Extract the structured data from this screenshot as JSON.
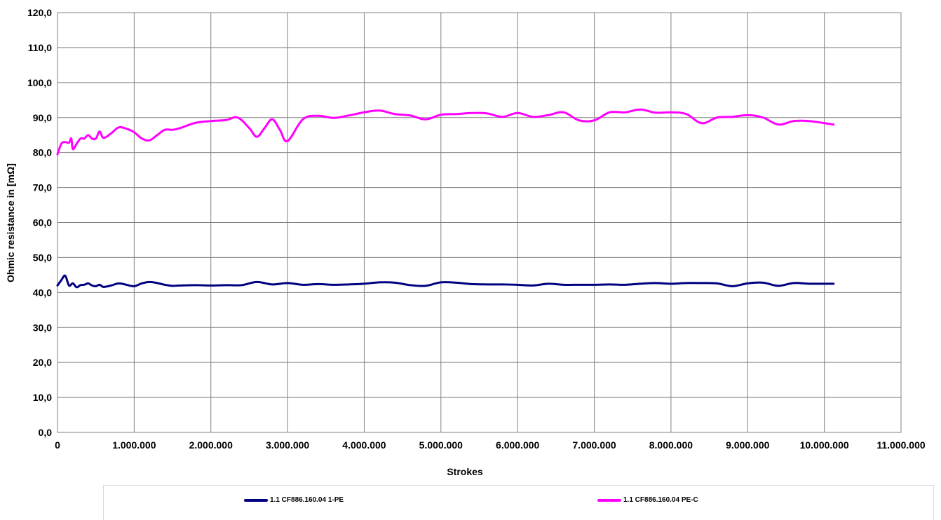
{
  "chart_data": {
    "type": "line",
    "title": "",
    "xlabel": "Strokes",
    "ylabel": "Ohmic resistance in [mΩ]",
    "xlim": [
      0,
      11000000
    ],
    "ylim": [
      0,
      120
    ],
    "x_ticks": [
      0,
      1000000,
      2000000,
      3000000,
      4000000,
      5000000,
      6000000,
      7000000,
      8000000,
      9000000,
      10000000,
      11000000
    ],
    "x_tick_labels": [
      "0",
      "1.000.000",
      "2.000.000",
      "3.000.000",
      "4.000.000",
      "5.000.000",
      "6.000.000",
      "7.000.000",
      "8.000.000",
      "9.000.000",
      "10.000.000",
      "11.000.000"
    ],
    "y_ticks": [
      0,
      10,
      20,
      30,
      40,
      50,
      60,
      70,
      80,
      90,
      100,
      110,
      120
    ],
    "y_tick_labels": [
      "0,0",
      "10,0",
      "20,0",
      "30,0",
      "40,0",
      "50,0",
      "60,0",
      "70,0",
      "80,0",
      "90,0",
      "100,0",
      "110,0",
      "120,0"
    ],
    "grid": true,
    "legend_position": "bottom",
    "series": [
      {
        "name": "1.1 CF886.160.04 1-PE",
        "color": "#000080",
        "x": [
          0,
          50000,
          100000,
          150000,
          200000,
          250000,
          300000,
          350000,
          400000,
          450000,
          500000,
          550000,
          600000,
          700000,
          800000,
          900000,
          1000000,
          1100000,
          1200000,
          1300000,
          1400000,
          1500000,
          1600000,
          1800000,
          2000000,
          2200000,
          2400000,
          2600000,
          2800000,
          3000000,
          3200000,
          3400000,
          3600000,
          3800000,
          4000000,
          4200000,
          4400000,
          4600000,
          4800000,
          5000000,
          5200000,
          5400000,
          5600000,
          5800000,
          6000000,
          6200000,
          6400000,
          6600000,
          6800000,
          7000000,
          7200000,
          7400000,
          7600000,
          7800000,
          8000000,
          8200000,
          8400000,
          8600000,
          8800000,
          9000000,
          9200000,
          9400000,
          9600000,
          9800000,
          10000000,
          10120000
        ],
        "values": [
          42.0,
          43.5,
          44.8,
          42.0,
          42.6,
          41.5,
          42.1,
          42.2,
          42.6,
          42.0,
          41.8,
          42.2,
          41.6,
          42.0,
          42.6,
          42.2,
          41.8,
          42.6,
          43.0,
          42.7,
          42.2,
          41.9,
          42.0,
          42.1,
          42.0,
          42.1,
          42.1,
          43.0,
          42.3,
          42.7,
          42.2,
          42.4,
          42.2,
          42.3,
          42.5,
          42.9,
          42.8,
          42.1,
          41.9,
          42.9,
          42.8,
          42.4,
          42.3,
          42.3,
          42.2,
          42.0,
          42.5,
          42.2,
          42.2,
          42.2,
          42.3,
          42.2,
          42.5,
          42.7,
          42.5,
          42.7,
          42.7,
          42.6,
          41.8,
          42.6,
          42.8,
          41.9,
          42.7,
          42.5,
          42.5,
          42.5
        ]
      },
      {
        "name": "1.1 CF886.160.04 PE-C",
        "color": "#ff00ff",
        "x": [
          0,
          50000,
          100000,
          150000,
          180000,
          200000,
          250000,
          300000,
          350000,
          400000,
          450000,
          500000,
          550000,
          600000,
          700000,
          800000,
          900000,
          1000000,
          1100000,
          1200000,
          1300000,
          1400000,
          1500000,
          1600000,
          1800000,
          2000000,
          2200000,
          2350000,
          2500000,
          2600000,
          2700000,
          2800000,
          2900000,
          3000000,
          3200000,
          3400000,
          3600000,
          3800000,
          4000000,
          4200000,
          4400000,
          4600000,
          4800000,
          5000000,
          5200000,
          5400000,
          5600000,
          5800000,
          6000000,
          6200000,
          6400000,
          6600000,
          6800000,
          7000000,
          7200000,
          7400000,
          7600000,
          7800000,
          8000000,
          8200000,
          8400000,
          8600000,
          8800000,
          9000000,
          9200000,
          9400000,
          9600000,
          9800000,
          10000000,
          10120000
        ],
        "values": [
          79.5,
          82.5,
          83.0,
          82.8,
          84.0,
          81.0,
          82.5,
          84.0,
          84.0,
          85.0,
          84.0,
          84.0,
          86.0,
          84.2,
          85.5,
          87.2,
          86.8,
          85.8,
          84.0,
          83.5,
          85.0,
          86.5,
          86.5,
          87.0,
          88.5,
          89.0,
          89.3,
          90.0,
          87.0,
          84.5,
          87.0,
          89.5,
          86.5,
          83.3,
          89.5,
          90.5,
          89.9,
          90.6,
          91.5,
          92.0,
          91.0,
          90.6,
          89.5,
          90.8,
          91.0,
          91.3,
          91.2,
          90.2,
          91.3,
          90.2,
          90.7,
          91.5,
          89.2,
          89.2,
          91.5,
          91.5,
          92.3,
          91.4,
          91.5,
          91.0,
          88.4,
          90.0,
          90.2,
          90.7,
          90.0,
          88.0,
          89.0,
          89.0,
          88.4,
          88.0
        ]
      }
    ]
  },
  "legend": {
    "items": [
      {
        "label": "1.1 CF886.160.04 1-PE",
        "color": "#000080"
      },
      {
        "label": "1.1 CF886.160.04 PE-C",
        "color": "#ff00ff"
      }
    ]
  }
}
